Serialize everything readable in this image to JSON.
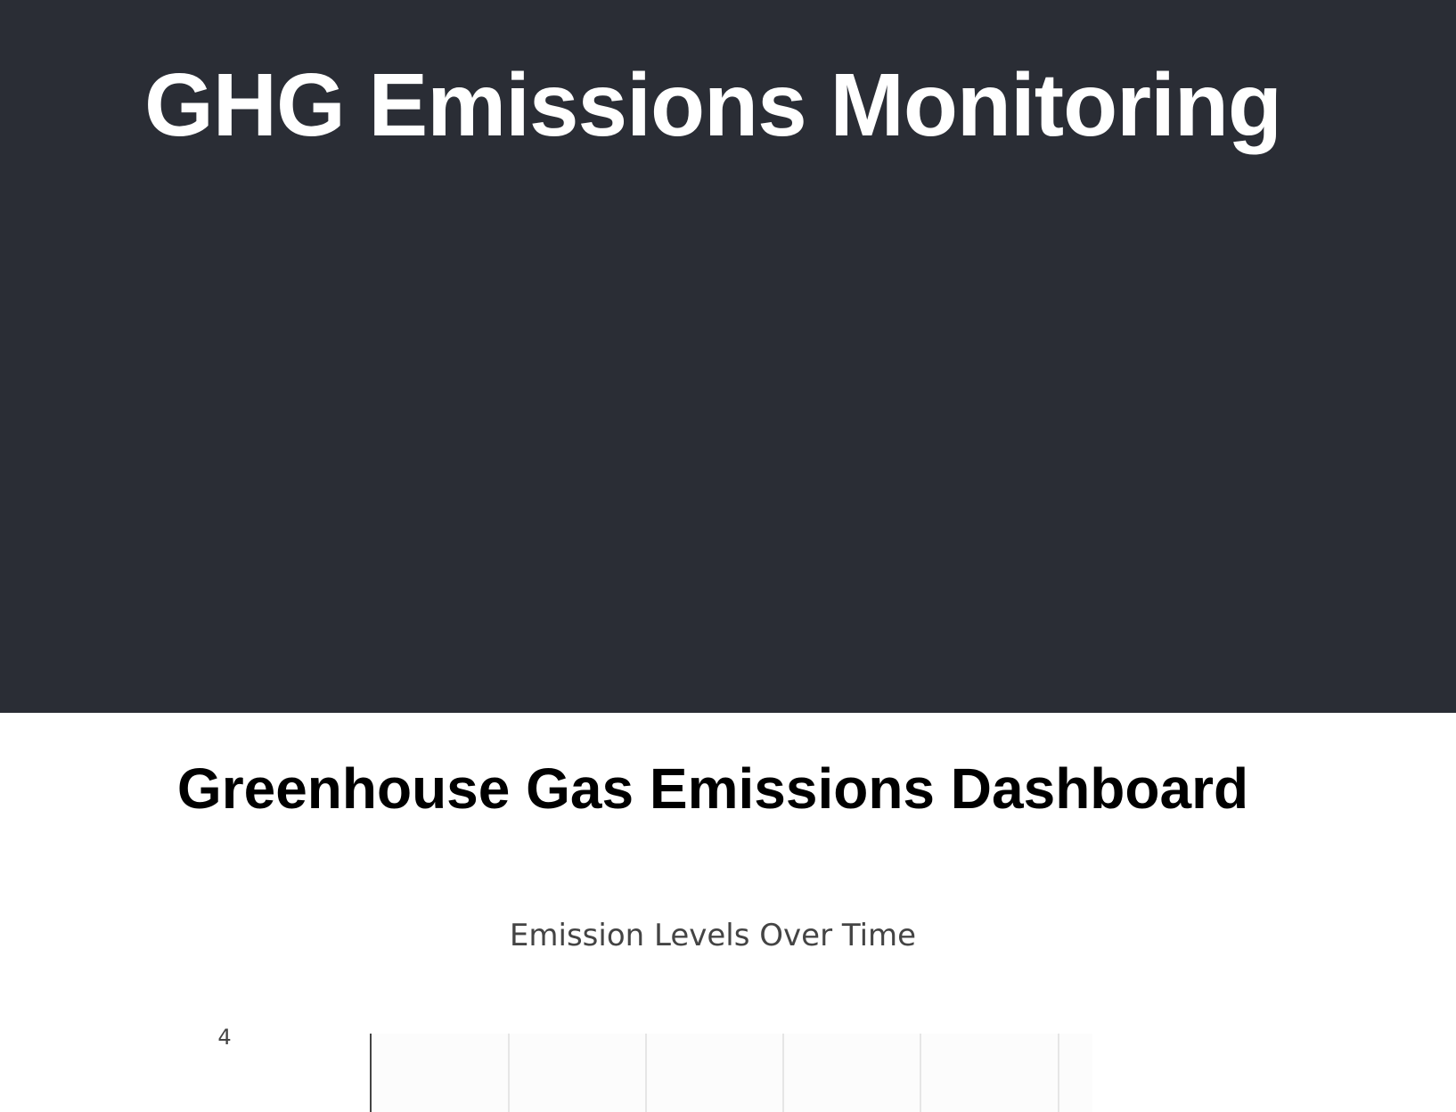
{
  "header": {
    "title": "GHG Emissions Monitoring"
  },
  "dashboard": {
    "title": "Greenhouse Gas Emissions Dashboard"
  },
  "chart_data": {
    "type": "line",
    "title": "Emission Levels Over Time",
    "xlabel": "",
    "ylabel": "",
    "y_ticks": [
      "4"
    ],
    "grid": true,
    "series": []
  }
}
